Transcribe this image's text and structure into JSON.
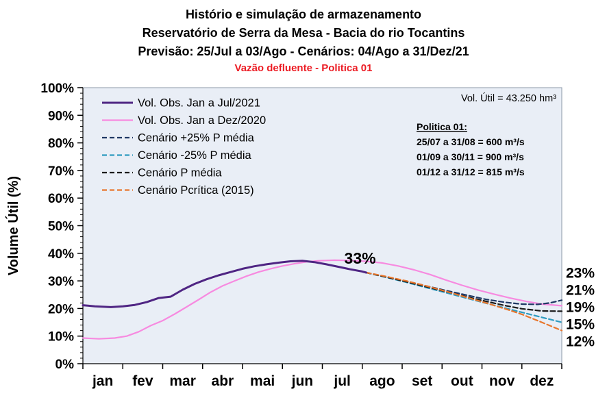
{
  "chart_data": {
    "type": "line",
    "title_lines": [
      "Histório e simulação de armazenamento",
      "Reservatório de Serra da Mesa - Bacia do rio Tocantins",
      "Previsão: 25/Jul a 03/Ago - Cenários: 04/Ago a 31/Dez/21"
    ],
    "subtitle": {
      "text": "Vazão defluente - Politica 01",
      "color": "#EC1C24"
    },
    "ylabel": "Volume Útil (%)",
    "ylim": [
      0,
      100
    ],
    "ytick_step": 10,
    "yticks": [
      "0%",
      "10%",
      "20%",
      "30%",
      "40%",
      "50%",
      "60%",
      "70%",
      "80%",
      "90%",
      "100%"
    ],
    "categories": [
      "jan",
      "fev",
      "mar",
      "abr",
      "mai",
      "jun",
      "jul",
      "ago",
      "set",
      "out",
      "nov",
      "dez"
    ],
    "grid": false,
    "legend_position": "top-left",
    "plot_bg": "#E9EEF6",
    "border_color": "#8D99A8",
    "series": [
      {
        "id": "obs-2021",
        "name": "Vol. Obs. Jan a Jul/2021",
        "color": "#4F2583",
        "width": 3,
        "dash": "none",
        "points": [
          [
            0,
            21.2
          ],
          [
            0.3,
            20.8
          ],
          [
            0.7,
            20.5
          ],
          [
            1.0,
            20.8
          ],
          [
            1.3,
            21.3
          ],
          [
            1.6,
            22.3
          ],
          [
            1.9,
            23.8
          ],
          [
            2.2,
            24.3
          ],
          [
            2.5,
            26.8
          ],
          [
            2.8,
            28.9
          ],
          [
            3.1,
            30.6
          ],
          [
            3.4,
            32.0
          ],
          [
            3.7,
            33.2
          ],
          [
            4.0,
            34.4
          ],
          [
            4.3,
            35.3
          ],
          [
            4.6,
            36.0
          ],
          [
            4.9,
            36.6
          ],
          [
            5.2,
            37.1
          ],
          [
            5.5,
            37.3
          ],
          [
            5.8,
            36.8
          ],
          [
            6.1,
            36.0
          ],
          [
            6.4,
            35.1
          ],
          [
            6.7,
            34.2
          ],
          [
            7.0,
            33.4
          ],
          [
            7.1,
            33.0
          ]
        ]
      },
      {
        "id": "obs-2020",
        "name": "Vol. Obs. Jan a Dez/2020",
        "color": "#F78AE0",
        "width": 2.2,
        "dash": "none",
        "points": [
          [
            0,
            9.3
          ],
          [
            0.4,
            9.0
          ],
          [
            0.8,
            9.3
          ],
          [
            1.1,
            10.0
          ],
          [
            1.4,
            11.6
          ],
          [
            1.7,
            13.8
          ],
          [
            2.0,
            15.6
          ],
          [
            2.3,
            18.0
          ],
          [
            2.6,
            20.6
          ],
          [
            2.9,
            23.2
          ],
          [
            3.2,
            25.9
          ],
          [
            3.5,
            28.2
          ],
          [
            3.8,
            30.0
          ],
          [
            4.1,
            31.7
          ],
          [
            4.4,
            33.2
          ],
          [
            4.7,
            34.4
          ],
          [
            5.0,
            35.4
          ],
          [
            5.3,
            36.2
          ],
          [
            5.6,
            36.9
          ],
          [
            5.9,
            37.3
          ],
          [
            6.3,
            37.5
          ],
          [
            6.7,
            37.4
          ],
          [
            7.1,
            37.1
          ],
          [
            7.5,
            36.5
          ],
          [
            7.9,
            35.4
          ],
          [
            8.3,
            34.0
          ],
          [
            8.7,
            32.3
          ],
          [
            9.1,
            30.3
          ],
          [
            9.5,
            28.4
          ],
          [
            9.9,
            26.7
          ],
          [
            10.3,
            25.2
          ],
          [
            10.7,
            23.8
          ],
          [
            11.1,
            22.6
          ],
          [
            11.5,
            21.6
          ],
          [
            12,
            21.0
          ]
        ]
      },
      {
        "id": "cenario-mais25",
        "name": "Cenário +25% P média",
        "color": "#1F3864",
        "width": 2.2,
        "dash": "7 4",
        "points": [
          [
            7.1,
            33
          ],
          [
            7.6,
            31.5
          ],
          [
            8.1,
            29.9
          ],
          [
            8.6,
            28.2
          ],
          [
            9.1,
            26.5
          ],
          [
            9.6,
            24.9
          ],
          [
            10.1,
            23.3
          ],
          [
            10.6,
            22.2
          ],
          [
            11.0,
            21.6
          ],
          [
            11.4,
            21.5
          ],
          [
            11.7,
            22.0
          ],
          [
            12,
            23.0
          ]
        ]
      },
      {
        "id": "cenario-menos25",
        "name": "Cenário -25% P média",
        "color": "#2E9BBF",
        "width": 2.2,
        "dash": "7 4",
        "points": [
          [
            7.1,
            33
          ],
          [
            7.6,
            31.3
          ],
          [
            8.1,
            29.5
          ],
          [
            8.6,
            27.6
          ],
          [
            9.1,
            25.7
          ],
          [
            9.6,
            23.8
          ],
          [
            10.1,
            21.9
          ],
          [
            10.6,
            20.1
          ],
          [
            11.0,
            18.6
          ],
          [
            11.5,
            16.8
          ],
          [
            12,
            15.0
          ]
        ]
      },
      {
        "id": "cenario-pmedia",
        "name": "Cenário P média",
        "color": "#1A1A1A",
        "width": 2.2,
        "dash": "7 4",
        "points": [
          [
            7.1,
            33
          ],
          [
            7.6,
            31.4
          ],
          [
            8.1,
            29.7
          ],
          [
            8.6,
            27.9
          ],
          [
            9.1,
            26.1
          ],
          [
            9.6,
            24.3
          ],
          [
            10.1,
            22.6
          ],
          [
            10.6,
            21.0
          ],
          [
            11.0,
            19.9
          ],
          [
            11.5,
            19.1
          ],
          [
            12,
            19.0
          ]
        ]
      },
      {
        "id": "cenario-pcritica",
        "name": "Cenário Pcrítica (2015)",
        "color": "#E8762C",
        "width": 2.2,
        "dash": "7 4",
        "points": [
          [
            7.1,
            33
          ],
          [
            7.6,
            31.6
          ],
          [
            8.1,
            30.0
          ],
          [
            8.6,
            28.2
          ],
          [
            9.1,
            26.2
          ],
          [
            9.6,
            24.1
          ],
          [
            10.1,
            22.0
          ],
          [
            10.6,
            19.8
          ],
          [
            11.0,
            17.9
          ],
          [
            11.5,
            15.0
          ],
          [
            12,
            12.0
          ]
        ]
      }
    ],
    "draw_order": [
      1,
      2,
      3,
      4,
      5,
      0
    ],
    "annotations": {
      "vol_util": "Vol. Útil  = 43.250 hm³",
      "policy": {
        "title": "Politica 01:",
        "lines": [
          "25/07 a 31/08 = 600 m³/s",
          "01/09 a 30/11 = 900 m³/s",
          "01/12 a 31/12 = 815 m³/s"
        ],
        "color": "#FF0000"
      },
      "current_label": {
        "text": "33%",
        "color": "#7030A0",
        "x": 6.55,
        "y": 33
      },
      "end_labels": [
        {
          "text": "23%",
          "value": 23,
          "color": "#203A66"
        },
        {
          "text": "21%",
          "value": 21,
          "color": "#FA4FD0"
        },
        {
          "text": "19%",
          "value": 19,
          "color": "#333333"
        },
        {
          "text": "15%",
          "value": 15,
          "color": "#29A0DA"
        },
        {
          "text": "12%",
          "value": 12,
          "color": "#EE7C2E"
        }
      ]
    }
  }
}
